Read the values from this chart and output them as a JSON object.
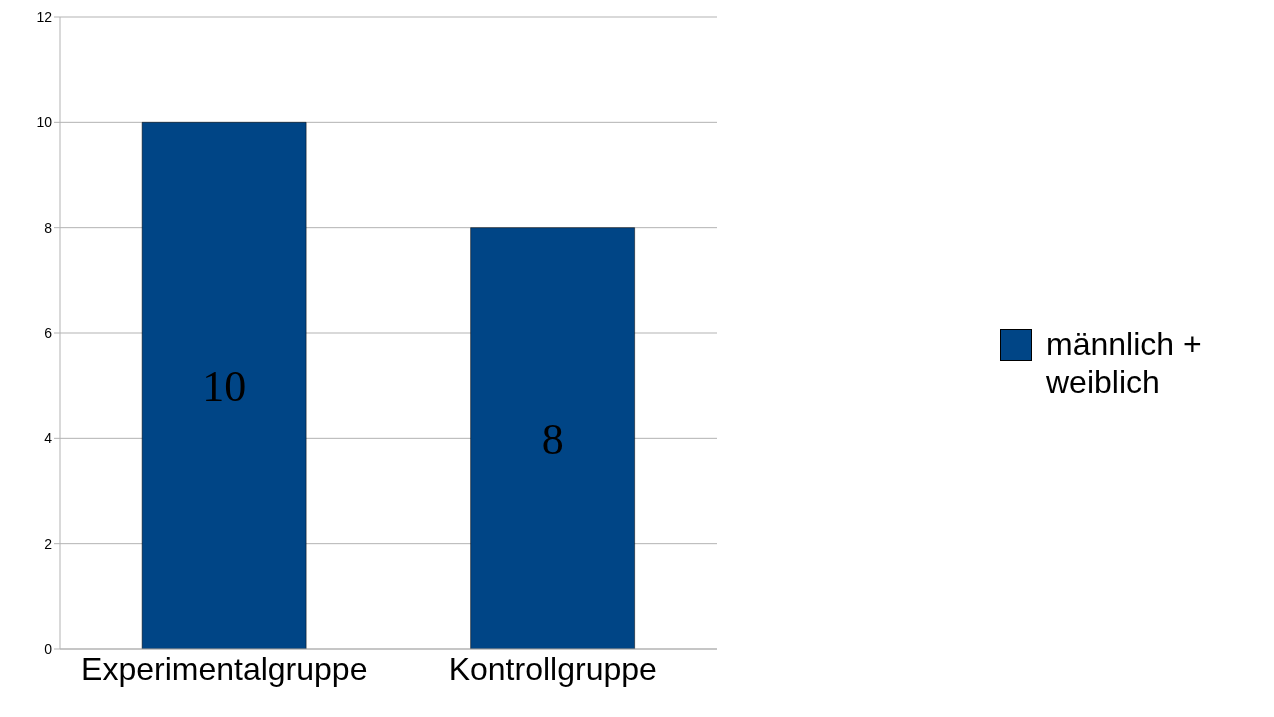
{
  "chart_data": {
    "type": "bar",
    "categories": [
      "Experimentalgruppe",
      "Kontrollgruppe"
    ],
    "series": [
      {
        "name": "männlich + weiblich",
        "color": "#004586",
        "values": [
          10,
          8
        ]
      }
    ],
    "ylim": [
      0,
      12
    ],
    "yticks": [
      0,
      2,
      4,
      6,
      8,
      10,
      12
    ],
    "grid": "y",
    "legend": "right",
    "data_labels": true
  }
}
